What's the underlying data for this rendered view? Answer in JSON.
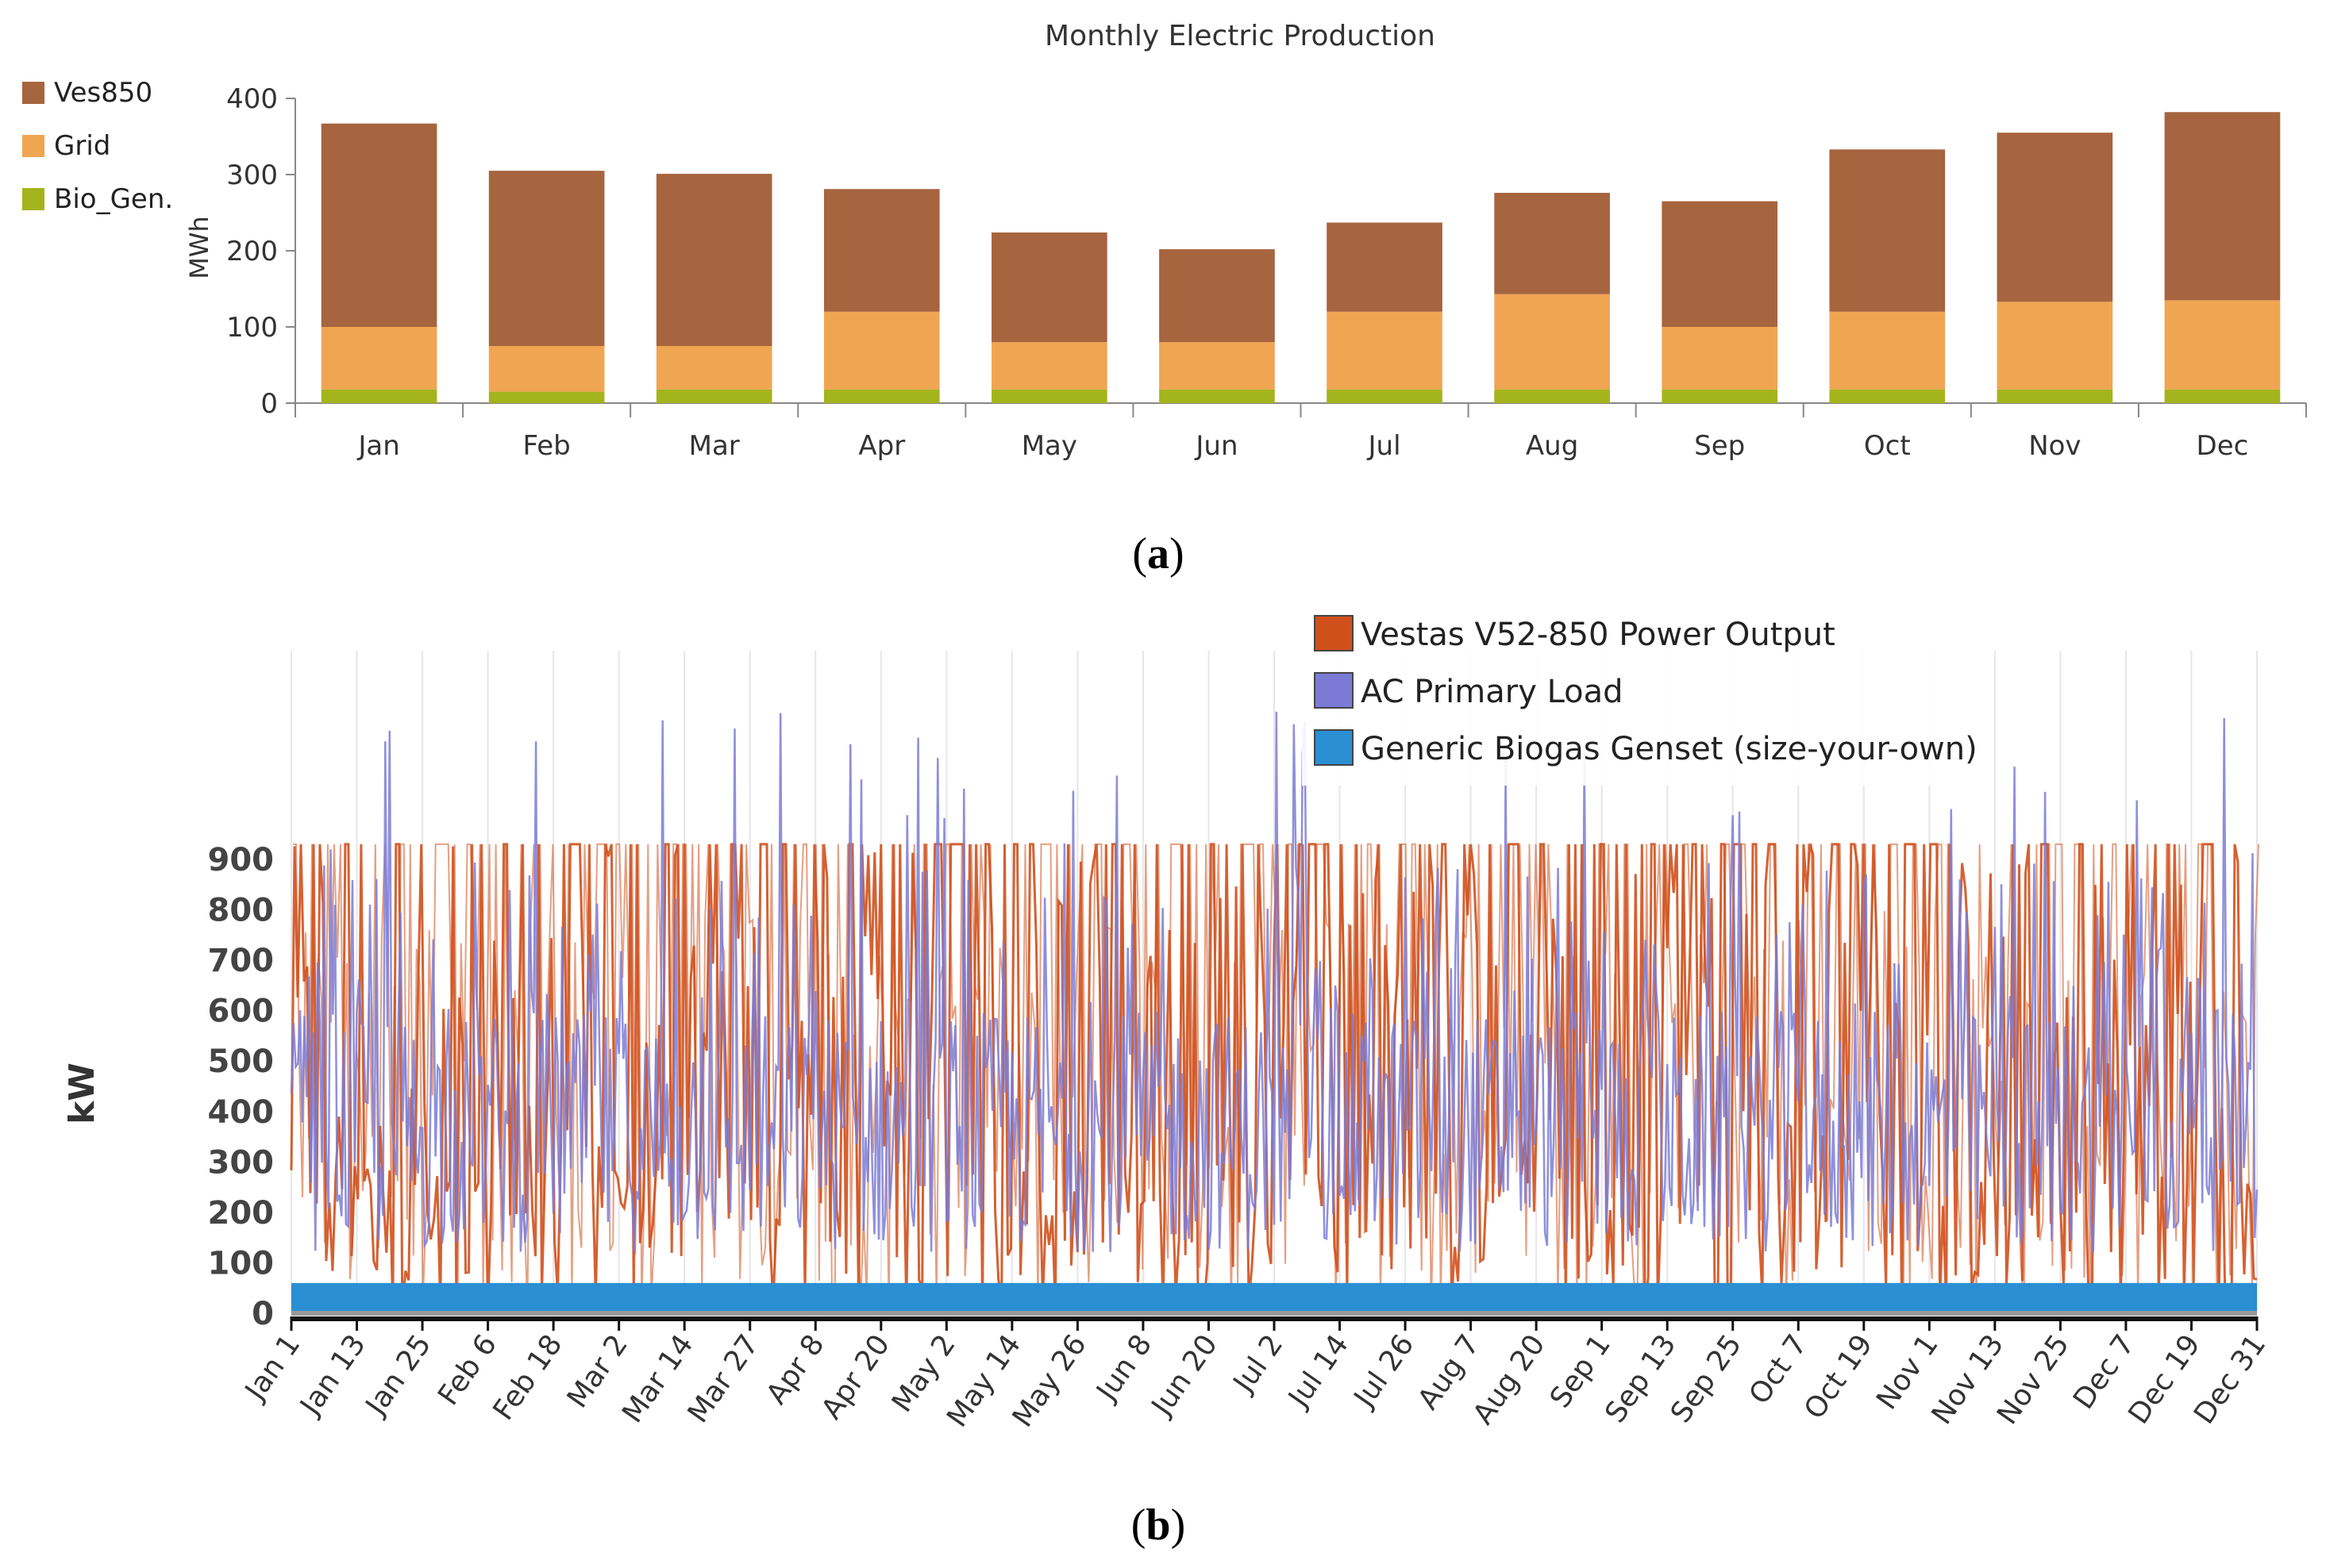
{
  "chart_data": [
    {
      "type": "bar",
      "stacked": true,
      "title": "Monthly Electric Production",
      "panel_label": "a",
      "ylabel": "MWh",
      "xlabel": "",
      "ylim": [
        0,
        400
      ],
      "yticks": [
        0,
        100,
        200,
        300,
        400
      ],
      "legend_position": "top-left",
      "categories": [
        "Jan",
        "Feb",
        "Mar",
        "Apr",
        "May",
        "Jun",
        "Jul",
        "Aug",
        "Sep",
        "Oct",
        "Nov",
        "Dec"
      ],
      "series": [
        {
          "name": "Bio_Gen.",
          "color": "#a4b41c",
          "values": [
            18,
            15,
            18,
            18,
            18,
            18,
            18,
            18,
            18,
            18,
            18,
            18
          ]
        },
        {
          "name": "Grid",
          "color": "#f0a552",
          "values": [
            82,
            60,
            57,
            102,
            62,
            62,
            102,
            125,
            82,
            102,
            115,
            117
          ]
        },
        {
          "name": "Ves850",
          "color": "#a6643f",
          "values": [
            267,
            230,
            226,
            161,
            144,
            122,
            117,
            133,
            165,
            213,
            222,
            247
          ]
        }
      ]
    },
    {
      "type": "line",
      "panel_label": "b",
      "ylabel": "kW",
      "ylim": [
        0,
        900
      ],
      "yticks": [
        0,
        100,
        200,
        300,
        400,
        500,
        600,
        700,
        800,
        900
      ],
      "legend_position": "top-right",
      "x_tick_labels": [
        "Jan 1",
        "Jan 13",
        "Jan 25",
        "Feb 6",
        "Feb 18",
        "Mar 2",
        "Mar 14",
        "Mar 27",
        "Apr 8",
        "Apr 20",
        "May 2",
        "May 14",
        "May 26",
        "Jun 8",
        "Jun 20",
        "Jul 2",
        "Jul 14",
        "Jul 26",
        "Aug 7",
        "Aug 20",
        "Sep 1",
        "Sep 13",
        "Sep 25",
        "Oct 7",
        "Oct 19",
        "Nov 1",
        "Nov 13",
        "Nov 25",
        "Dec 7",
        "Dec 19",
        "Dec 31"
      ],
      "series": [
        {
          "name": "Vestas V52-850 Power Output",
          "color": "#d0501c",
          "max": 930,
          "min": 0
        },
        {
          "name": "AC Primary Load",
          "color": "#7b7bd6",
          "max": 1200,
          "min": 60
        },
        {
          "name": "Generic Biogas Genset (size-your-own)",
          "color": "#2b8fd4",
          "values_constant": 60
        }
      ]
    }
  ]
}
